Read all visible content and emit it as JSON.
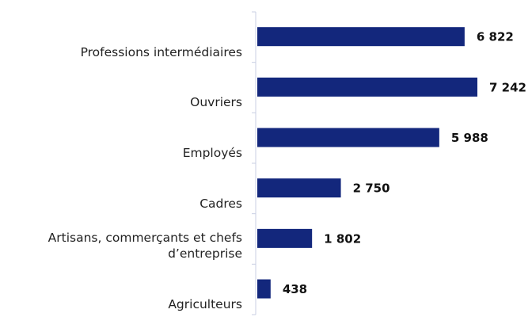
{
  "chart_data": {
    "type": "bar",
    "orientation": "horizontal",
    "categories": [
      "Professions intermédiaires",
      "Ouvriers",
      "Employés",
      "Cadres",
      "Artisans, commerçants et chefs d’entreprise",
      "Agriculteurs"
    ],
    "values": [
      6822,
      7242,
      5988,
      2750,
      1802,
      438
    ],
    "value_labels": [
      "6 822",
      "7 242",
      "5 988",
      "2 750",
      "1 802",
      "438"
    ],
    "color": "#13277c"
  }
}
